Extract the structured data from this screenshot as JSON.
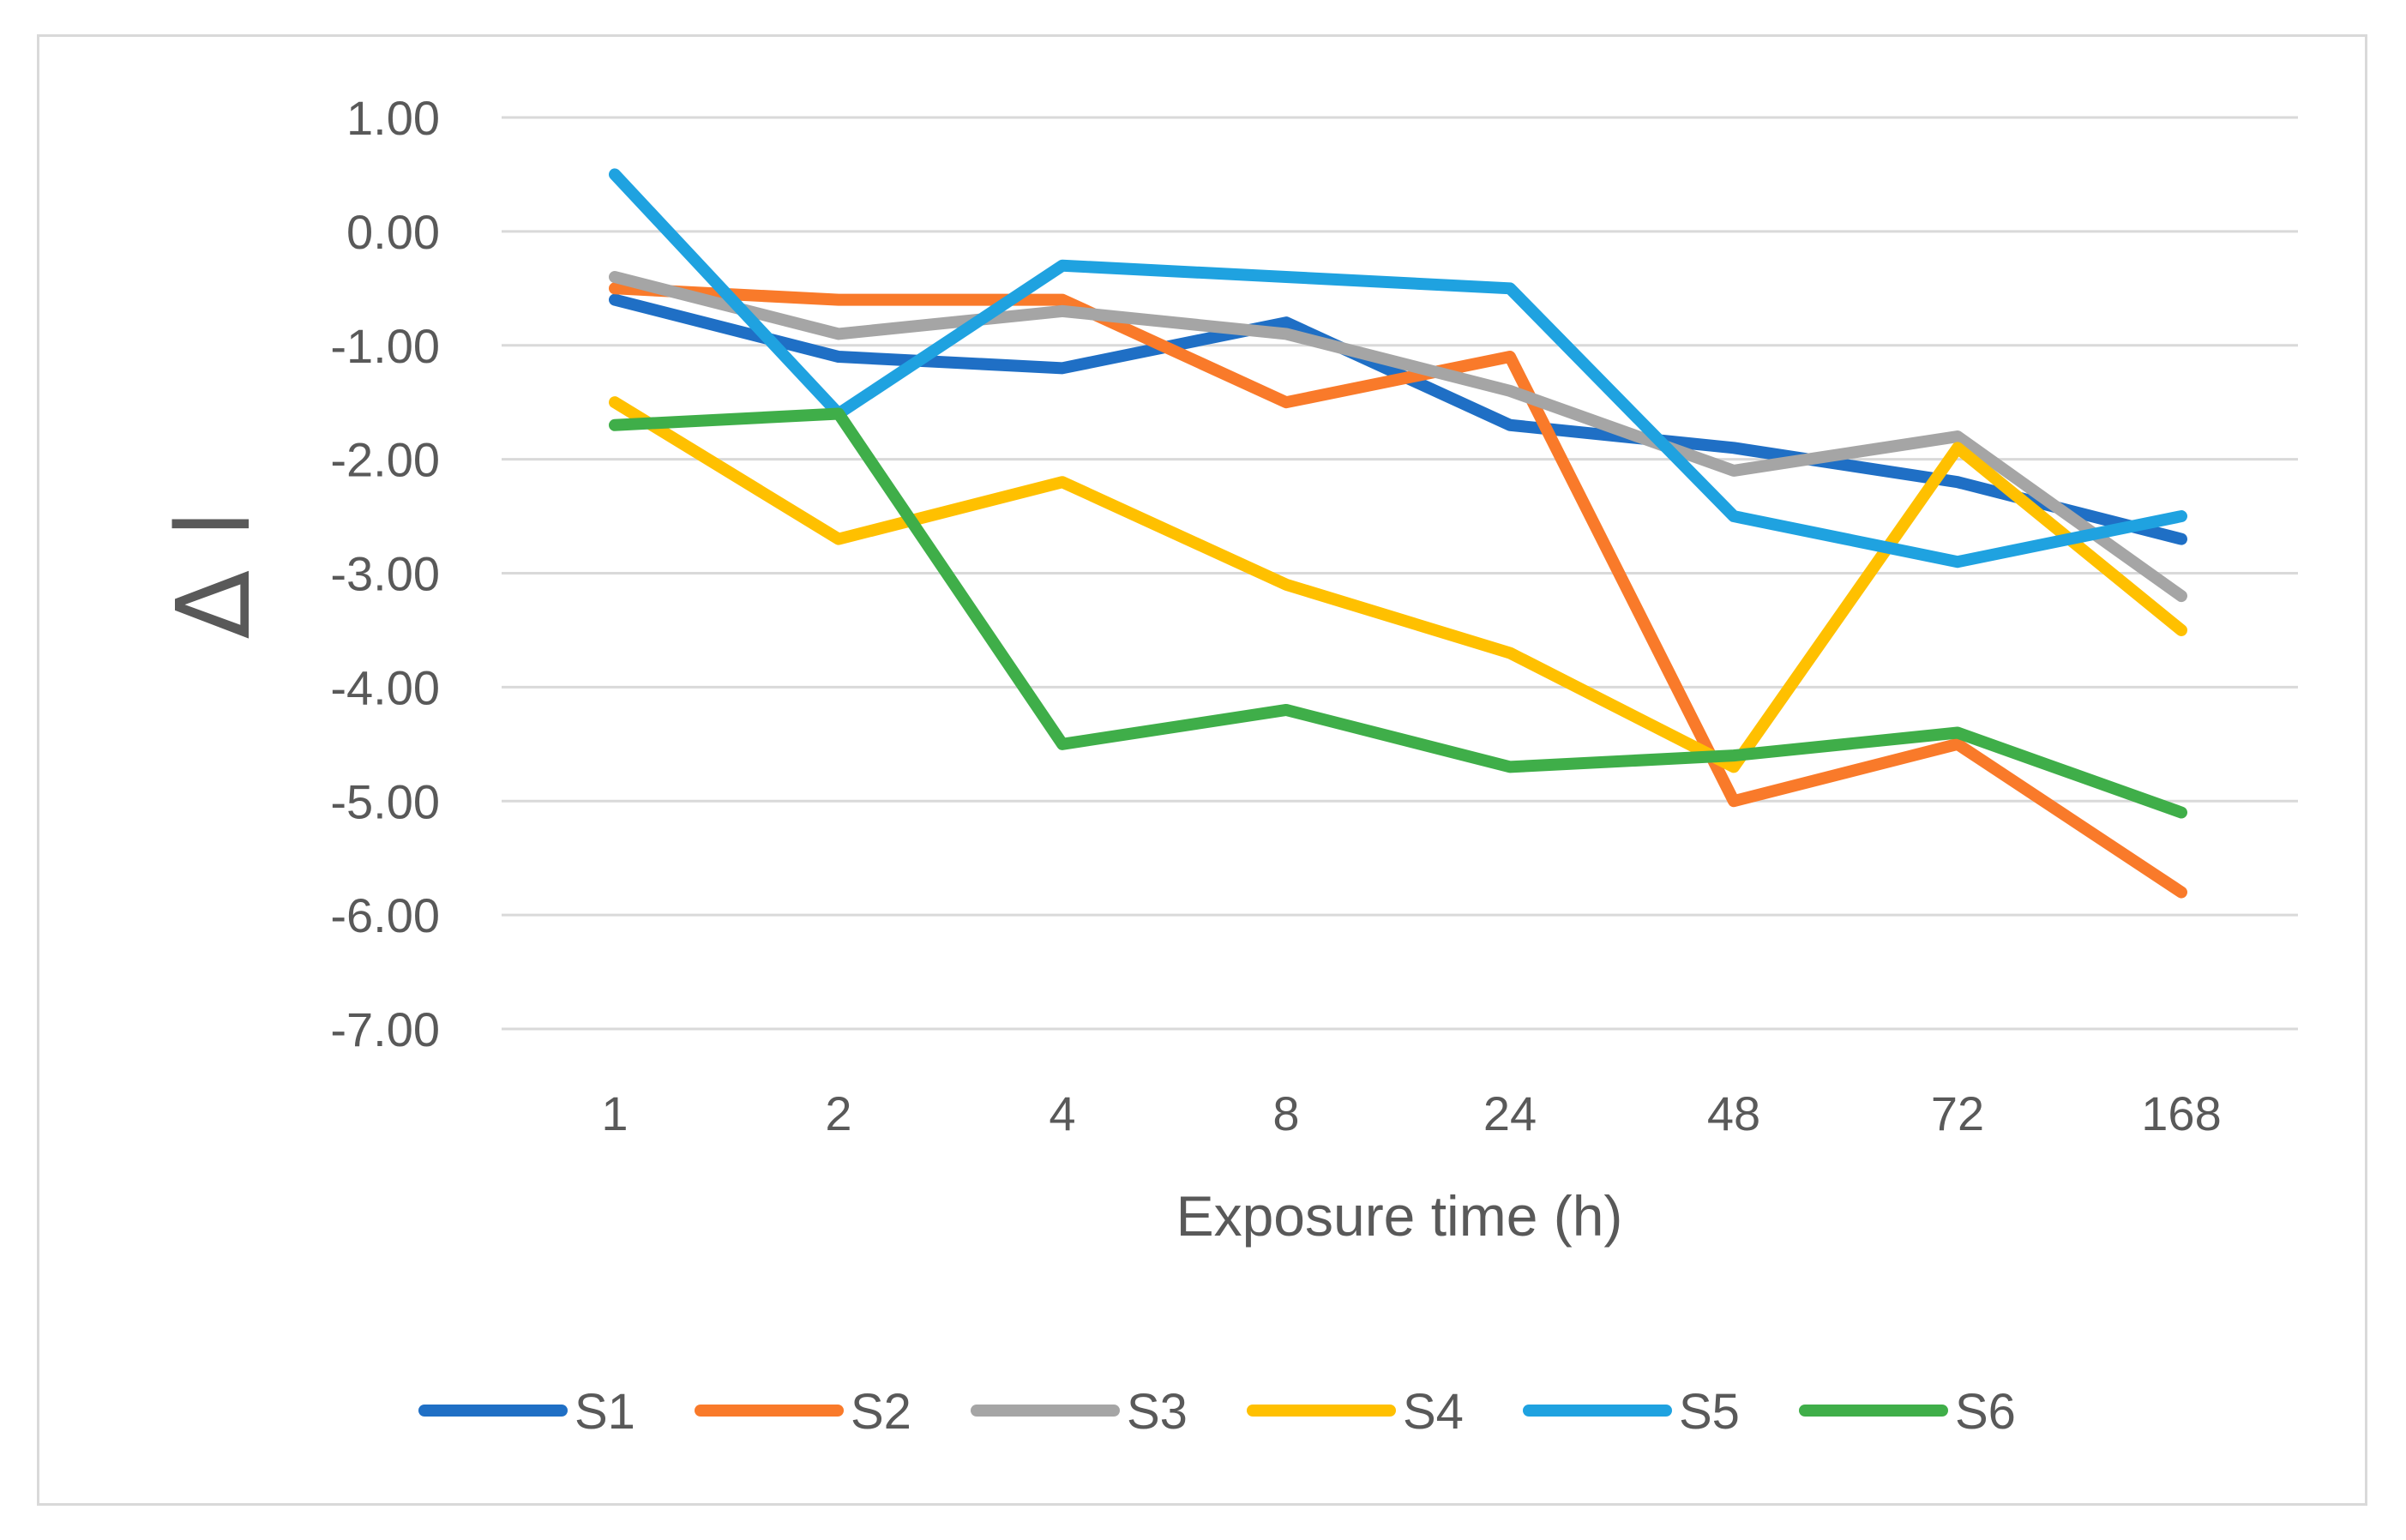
{
  "chart_data": {
    "type": "line",
    "title": "",
    "xlabel": "Exposure time (h)",
    "ylabel": "Δ l",
    "categories": [
      "1",
      "2",
      "4",
      "8",
      "24",
      "48",
      "72",
      "168"
    ],
    "ylim": [
      -7,
      1
    ],
    "yticks": [
      1,
      0,
      -1,
      -2,
      -3,
      -4,
      -5,
      -6,
      -7
    ],
    "ytick_labels": [
      "1.00",
      "0.00",
      "-1.00",
      "-2.00",
      "-3.00",
      "-4.00",
      "-5.00",
      "-6.00",
      "-7.00"
    ],
    "grid": true,
    "legend_position": "bottom",
    "series": [
      {
        "name": "S1",
        "color": "#1f6fc5",
        "values": [
          -0.6,
          -1.1,
          -1.2,
          -0.8,
          -1.7,
          -1.9,
          -2.2,
          -2.7
        ]
      },
      {
        "name": "S2",
        "color": "#f97a2a",
        "values": [
          -0.5,
          -0.6,
          -0.6,
          -1.5,
          -1.1,
          -5.0,
          -4.5,
          -5.8
        ]
      },
      {
        "name": "S3",
        "color": "#a5a5a5",
        "values": [
          -0.4,
          -0.9,
          -0.7,
          -0.9,
          -1.4,
          -2.1,
          -1.8,
          -3.2
        ]
      },
      {
        "name": "S4",
        "color": "#ffc000",
        "values": [
          -1.5,
          -2.7,
          -2.2,
          -3.1,
          -3.7,
          -4.7,
          -1.9,
          -3.5
        ]
      },
      {
        "name": "S5",
        "color": "#1fa2e0",
        "values": [
          0.5,
          -1.6,
          -0.3,
          -0.4,
          -0.5,
          -2.5,
          -2.9,
          -2.5
        ]
      },
      {
        "name": "S6",
        "color": "#3fae49",
        "values": [
          -1.7,
          -1.6,
          -4.5,
          -4.2,
          -4.7,
          -4.6,
          -4.4,
          -5.1
        ]
      }
    ]
  }
}
